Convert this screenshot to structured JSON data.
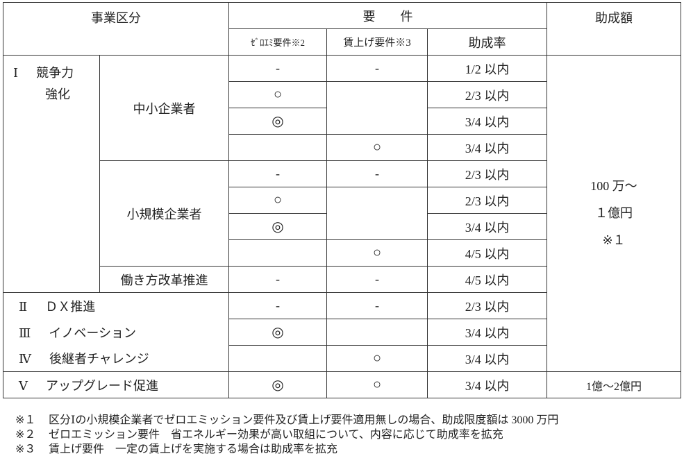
{
  "header": {
    "category": "事業区分",
    "requirements": "要　　件",
    "amount": "助成額",
    "zero_emission": "ｾﾞﾛｴﾐ要件※2",
    "wage_increase": "賃上げ要件※3",
    "rate": "助成率"
  },
  "categories": {
    "c1_num": "Ⅰ",
    "c1_line1": "競争力",
    "c1_line2": "強化",
    "sme": "中小企業者",
    "small": "小規模企業者",
    "workstyle": "働き方改革推進",
    "c2_num": "Ⅱ",
    "c2": "ＤＸ推進",
    "c3_num": "Ⅲ",
    "c3": "イノベーション",
    "c4_num": "Ⅳ",
    "c4": "後継者チャレンジ",
    "c5_num": "Ⅴ",
    "c5": "アップグレード促進"
  },
  "rows": [
    {
      "zero": "-",
      "wage": "-",
      "rate": "1/2 以内"
    },
    {
      "zero": "○",
      "wage": "",
      "rate": "2/3 以内"
    },
    {
      "zero": "◎",
      "rate": "3/4 以内"
    },
    {
      "zero": "",
      "wage": "○",
      "rate": "3/4 以内"
    },
    {
      "zero": "-",
      "wage": "-",
      "rate": "2/3 以内"
    },
    {
      "zero": "○",
      "wage": "",
      "rate": "2/3 以内"
    },
    {
      "zero": "◎",
      "rate": "3/4 以内"
    },
    {
      "zero": "",
      "wage": "○",
      "rate": "4/5 以内"
    },
    {
      "zero": "-",
      "wage": "-",
      "rate": "4/5 以内"
    },
    {
      "zero": "-",
      "wage": "-",
      "rate": "2/3 以内"
    },
    {
      "zero": "◎",
      "wage": "",
      "rate": "3/4 以内"
    },
    {
      "zero": "",
      "wage": "○",
      "rate": "3/4 以内"
    },
    {
      "zero": "◎",
      "wage": "○",
      "rate": "3/4 以内"
    }
  ],
  "amounts": {
    "main_line1": "100 万～",
    "main_line2": "１億円",
    "main_line3": "※１",
    "upgrade": "1億～2億円"
  },
  "footnotes": [
    {
      "mark": "※１",
      "text": "区分Ⅰの小規模企業者でゼロエミッション要件及び賃上げ要件適用無しの場合、助成限度額は 3000 万円"
    },
    {
      "mark": "※２",
      "text": "ゼロエミッション要件　省エネルギー効果が高い取組について、内容に応じて助成率を拡充"
    },
    {
      "mark": "※３",
      "text": "賃上げ要件　一定の賃上げを実施する場合は助成率を拡充"
    }
  ]
}
